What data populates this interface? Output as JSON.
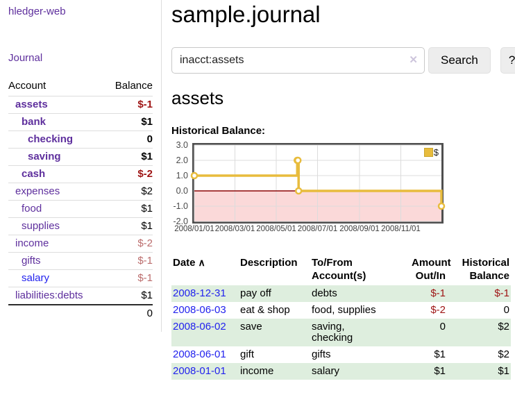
{
  "app": {
    "title": "hledger-web",
    "nav_journal": "Journal"
  },
  "sidebar": {
    "accounts_header": {
      "account": "Account",
      "balance": "Balance"
    },
    "accounts": [
      {
        "name": "assets",
        "balance": "$-1",
        "depth": 0,
        "strong": true,
        "amount_style": "neg-strong",
        "link": "visited"
      },
      {
        "name": "bank",
        "balance": "$1",
        "depth": 1,
        "strong": true,
        "amount_style": "strong",
        "link": "visited"
      },
      {
        "name": "checking",
        "balance": "0",
        "depth": 2,
        "strong": true,
        "amount_style": "strong",
        "link": "visited"
      },
      {
        "name": "saving",
        "balance": "$1",
        "depth": 2,
        "strong": true,
        "amount_style": "strong",
        "link": "visited"
      },
      {
        "name": "cash",
        "balance": "$-2",
        "depth": 1,
        "strong": true,
        "amount_style": "neg-strong",
        "link": "visited"
      },
      {
        "name": "expenses",
        "balance": "$2",
        "depth": 0,
        "strong": false,
        "amount_style": "normal",
        "link": "visited"
      },
      {
        "name": "food",
        "balance": "$1",
        "depth": 1,
        "strong": false,
        "amount_style": "normal",
        "link": "visited"
      },
      {
        "name": "supplies",
        "balance": "$1",
        "depth": 1,
        "strong": false,
        "amount_style": "normal",
        "link": "visited"
      },
      {
        "name": "income",
        "balance": "$-2",
        "depth": 0,
        "strong": false,
        "amount_style": "neg-muted",
        "link": "visited"
      },
      {
        "name": "gifts",
        "balance": "$-1",
        "depth": 1,
        "strong": false,
        "amount_style": "neg-muted",
        "link": "visited"
      },
      {
        "name": "salary",
        "balance": "$-1",
        "depth": 1,
        "strong": false,
        "amount_style": "neg-muted",
        "link": "unvisited"
      },
      {
        "name": "liabilities:debts",
        "balance": "$1",
        "depth": 0,
        "strong": false,
        "amount_style": "normal",
        "link": "visited"
      }
    ],
    "total": "0"
  },
  "header": {
    "title": "sample.journal"
  },
  "search": {
    "value": "inacct:assets",
    "clear_icon": "✕",
    "button_label": "Search",
    "help_label": "?"
  },
  "account_page": {
    "title": "assets",
    "chart_label": "Historical Balance:"
  },
  "chart_data": {
    "type": "line",
    "style": "step",
    "title": "Historical Balance",
    "series": [
      {
        "name": "$",
        "color": "#e8bc3d",
        "points": [
          [
            "2008-01-01",
            1
          ],
          [
            "2008-06-01",
            2
          ],
          [
            "2008-06-02",
            2
          ],
          [
            "2008-06-03",
            0
          ],
          [
            "2008-12-31",
            -1
          ]
        ]
      }
    ],
    "xlim": [
      "2008-01-01",
      "2008-12-31"
    ],
    "ylim": [
      -2,
      3
    ],
    "yticks": [
      {
        "v": 3,
        "label": "3.0"
      },
      {
        "v": 2,
        "label": "2.0"
      },
      {
        "v": 1,
        "label": "1.0"
      },
      {
        "v": 0,
        "label": "0.0"
      },
      {
        "v": -1,
        "label": "-1.0"
      },
      {
        "v": -2,
        "label": "-2.0"
      }
    ],
    "xticks": [
      {
        "v": "2008-01-01",
        "label": "2008/01/01"
      },
      {
        "v": "2008-03-01",
        "label": "2008/03/01"
      },
      {
        "v": "2008-05-01",
        "label": "2008/05/01"
      },
      {
        "v": "2008-07-01",
        "label": "2008/07/01"
      },
      {
        "v": "2008-09-01",
        "label": "2008/09/01"
      },
      {
        "v": "2008-11-01",
        "label": "2008/11/01"
      }
    ],
    "legend_position": "top-right",
    "grid": true,
    "colors": {
      "grid_line": "#dcdcdc",
      "plot_border": "#4f4f4f",
      "zero_line": "#8c0606",
      "negative_region_fill": "#fbd9d9",
      "series_gold": "#e8bc3d"
    }
  },
  "register": {
    "sort_icon": "∧",
    "columns": [
      "Date",
      "Description",
      "To/From\nAccount(s)",
      "Amount\nOut/In",
      "Historical\nBalance"
    ],
    "rows": [
      {
        "date": "2008-12-31",
        "description": "pay off",
        "accounts": "debts",
        "amount": "$-1",
        "balance": "$-1"
      },
      {
        "date": "2008-06-03",
        "description": "eat & shop",
        "accounts": "food, supplies",
        "amount": "$-2",
        "balance": "0"
      },
      {
        "date": "2008-06-02",
        "description": "save",
        "accounts": "saving,\nchecking",
        "amount": "0",
        "balance": "$2"
      },
      {
        "date": "2008-06-01",
        "description": "gift",
        "accounts": "gifts",
        "amount": "$1",
        "balance": "$2"
      },
      {
        "date": "2008-01-01",
        "description": "income",
        "accounts": "salary",
        "amount": "$1",
        "balance": "$1"
      }
    ]
  }
}
